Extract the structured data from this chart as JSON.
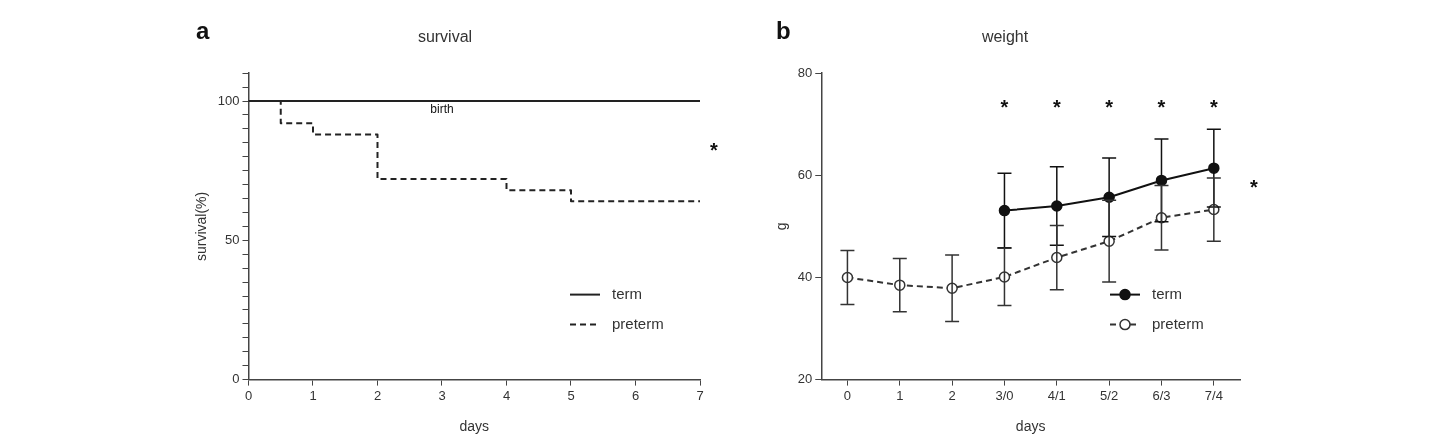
{
  "chart_data": [
    {
      "type": "step",
      "title": "survival",
      "xlabel": "days",
      "ylabel": "survival(%)",
      "xlim": [
        0,
        7
      ],
      "xticks": [
        0,
        1,
        2,
        3,
        4,
        5,
        6,
        7
      ],
      "ylim": [
        0,
        110
      ],
      "yticks": [
        0,
        {
          "value": 5,
          "label": null
        },
        {
          "value": 10,
          "label": null
        },
        {
          "value": 15,
          "label": null
        },
        {
          "value": 20,
          "label": null
        },
        {
          "value": 25,
          "label": null
        },
        {
          "value": 30,
          "label": null
        },
        {
          "value": 35,
          "label": null
        },
        {
          "value": 40,
          "label": null
        },
        {
          "value": 45,
          "label": null
        },
        50,
        {
          "value": 55,
          "label": null
        },
        {
          "value": 60,
          "label": null
        },
        {
          "value": 65,
          "label": null
        },
        {
          "value": 70,
          "label": null
        },
        {
          "value": 75,
          "label": null
        },
        {
          "value": 80,
          "label": null
        },
        {
          "value": 85,
          "label": null
        },
        {
          "value": 90,
          "label": null
        },
        {
          "value": 95,
          "label": null
        },
        100,
        {
          "value": 105,
          "label": null
        },
        {
          "value": 110,
          "label": null
        }
      ],
      "series": [
        {
          "name": "term",
          "color": "#222222",
          "line_style": "solid",
          "x": [
            0,
            7
          ],
          "values": [
            100,
            100
          ]
        },
        {
          "name": "preterm",
          "color": "#222222",
          "line_style": "dashed",
          "x": [
            0,
            0.5,
            1,
            2,
            4,
            5,
            7
          ],
          "values": [
            100,
            92,
            88,
            72,
            68,
            64,
            64
          ]
        }
      ],
      "annotations": [
        "a",
        {
          "text": "birth",
          "x": 3,
          "y": 100
        },
        "*"
      ],
      "grid": false,
      "legend": "bottom right",
      "marker": "none"
    },
    {
      "type": "line",
      "title": "weight",
      "xlabel": "days",
      "ylabel": "g",
      "categories": [
        "0",
        "1",
        "2",
        "3/0",
        "4/1",
        "5/2",
        "6/3",
        "7/4"
      ],
      "ylim": [
        20,
        80
      ],
      "yticks": [
        20,
        40,
        60,
        80
      ],
      "series": [
        {
          "name": "term",
          "color": "#111111",
          "line_style": "solid",
          "values": [
            null,
            null,
            null,
            53.1,
            54.0,
            55.7,
            59.0,
            61.4
          ],
          "errors": [
            null,
            null,
            null,
            7.3,
            7.7,
            7.7,
            8.1,
            7.6
          ]
        },
        {
          "name": "preterm",
          "color": "#333333",
          "line_style": "dashed",
          "values": [
            40.0,
            38.5,
            37.9,
            40.1,
            43.9,
            47.1,
            51.7,
            53.3
          ],
          "errors": [
            5.3,
            5.2,
            6.5,
            5.6,
            6.3,
            8.0,
            6.3,
            6.2
          ]
        }
      ],
      "annotations": [
        "b",
        "*",
        "*",
        "*",
        "*",
        "*",
        "*"
      ],
      "grid": false,
      "legend": "bottom right",
      "marker": "circle"
    }
  ]
}
